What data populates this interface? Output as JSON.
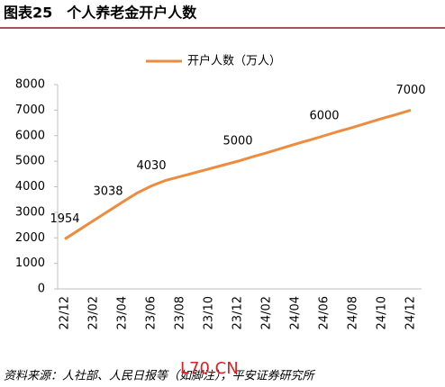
{
  "title": "图表25　个人养老金开户人数",
  "source": "资料来源：人社部、人民日报等（如脚注），平安证券研究所",
  "watermark": "L70.CN",
  "chart_data": {
    "type": "line",
    "categories": [
      "22/12",
      null,
      "23/02",
      null,
      "23/04",
      null,
      "23/06",
      null,
      "23/08",
      null,
      "23/10",
      null,
      "23/12",
      null,
      "24/02",
      null,
      "24/04",
      null,
      "24/06",
      null,
      "24/08",
      null,
      "24/10",
      null,
      "24/12"
    ],
    "series": [
      {
        "name": "开户人数（万人）",
        "color": "#ED8B3F",
        "values": [
          1954,
          2315,
          2677,
          3038,
          3400,
          3750,
          4030,
          4250,
          4400,
          4550,
          4700,
          4850,
          5000,
          5170,
          5330,
          5500,
          5670,
          5830,
          6000,
          6170,
          6330,
          6500,
          6670,
          6830,
          7000
        ],
        "value_labels": [
          "1954",
          null,
          null,
          "3038",
          null,
          null,
          "4030",
          null,
          null,
          null,
          null,
          null,
          "5000",
          null,
          null,
          null,
          null,
          null,
          "6000",
          null,
          null,
          null,
          null,
          null,
          "7000"
        ]
      }
    ],
    "ylim": [
      0,
      8000
    ],
    "yticks": [
      0,
      1000,
      2000,
      3000,
      4000,
      5000,
      6000,
      7000,
      8000
    ],
    "legend": "top",
    "grid": false
  }
}
